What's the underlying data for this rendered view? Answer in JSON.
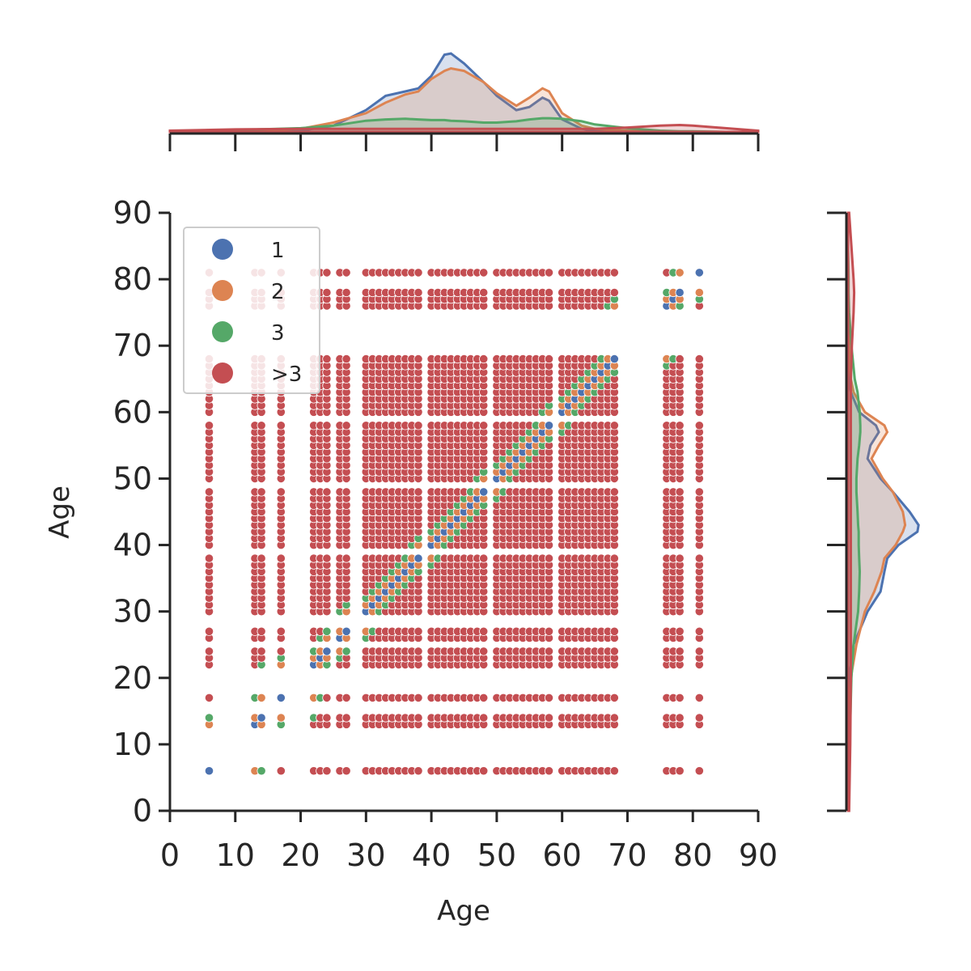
{
  "chart_data": {
    "type": "scatter",
    "title": "",
    "xlabel": "Age",
    "ylabel": "Age",
    "xlim": [
      0,
      90
    ],
    "ylim": [
      0,
      90
    ],
    "xticks": [
      "0",
      "10",
      "20",
      "30",
      "40",
      "50",
      "60",
      "70",
      "80",
      "90"
    ],
    "yticks": [
      "0",
      "10",
      "20",
      "30",
      "40",
      "50",
      "60",
      "70",
      "80",
      "90"
    ],
    "grid": false,
    "legend_position": "top-left",
    "ages": [
      6,
      13,
      14,
      17,
      22,
      23,
      24,
      26,
      27,
      30,
      31,
      32,
      33,
      34,
      35,
      36,
      37,
      38,
      40,
      41,
      42,
      43,
      44,
      45,
      46,
      47,
      48,
      50,
      51,
      52,
      53,
      54,
      55,
      56,
      57,
      58,
      60,
      61,
      62,
      63,
      64,
      65,
      66,
      67,
      68,
      76,
      77,
      78,
      81
    ],
    "scatter_note_category_by_age_difference": true,
    "series": [
      {
        "name": "1",
        "color": "#4c72b0"
      },
      {
        "name": "2",
        "color": "#dd8452"
      },
      {
        "name": "3",
        "color": "#55a868"
      },
      {
        "name": ">3",
        "color": "#c44e52"
      }
    ],
    "marginal_kde_top": {
      "x": [
        0,
        10,
        20,
        25,
        30,
        33,
        36,
        38,
        40,
        42,
        43,
        45,
        48,
        50,
        53,
        55,
        57,
        58,
        60,
        63,
        65,
        70,
        75,
        78,
        80,
        85,
        90
      ],
      "series": [
        {
          "name": "1",
          "density": [
            0,
            0,
            0.002,
            0.01,
            0.035,
            0.058,
            0.065,
            0.07,
            0.09,
            0.124,
            0.126,
            0.11,
            0.08,
            0.058,
            0.035,
            0.04,
            0.055,
            0.05,
            0.02,
            0.005,
            0.002,
            0,
            0,
            0,
            0,
            0,
            0
          ]
        },
        {
          "name": "2",
          "density": [
            0,
            0.001,
            0.005,
            0.015,
            0.03,
            0.047,
            0.06,
            0.065,
            0.085,
            0.098,
            0.102,
            0.098,
            0.08,
            0.062,
            0.042,
            0.055,
            0.07,
            0.065,
            0.03,
            0.01,
            0.005,
            0.002,
            0.001,
            0,
            0,
            0,
            0
          ]
        },
        {
          "name": "3",
          "density": [
            0,
            0.003,
            0.006,
            0.01,
            0.018,
            0.02,
            0.021,
            0.02,
            0.019,
            0.019,
            0.018,
            0.017,
            0.015,
            0.015,
            0.017,
            0.02,
            0.022,
            0.022,
            0.021,
            0.017,
            0.012,
            0.006,
            0.002,
            0.001,
            0.001,
            0,
            0
          ]
        },
        {
          "name": ">3",
          "density": [
            0.002,
            0.004,
            0.005,
            0.005,
            0.005,
            0.005,
            0.005,
            0.005,
            0.005,
            0.005,
            0.005,
            0.005,
            0.005,
            0.005,
            0.005,
            0.005,
            0.005,
            0.005,
            0.005,
            0.005,
            0.005,
            0.007,
            0.01,
            0.011,
            0.01,
            0.006,
            0.002
          ]
        }
      ]
    },
    "marginal_kde_right": {
      "y": [
        0,
        10,
        20,
        25,
        30,
        33,
        36,
        38,
        40,
        42,
        43,
        45,
        48,
        50,
        53,
        55,
        57,
        58,
        60,
        63,
        65,
        70,
        75,
        78,
        80,
        85,
        90
      ],
      "series": [
        {
          "name": "1",
          "density": [
            0,
            0,
            0.002,
            0.01,
            0.035,
            0.058,
            0.065,
            0.07,
            0.09,
            0.124,
            0.126,
            0.11,
            0.08,
            0.058,
            0.035,
            0.04,
            0.055,
            0.05,
            0.02,
            0.005,
            0.002,
            0,
            0,
            0,
            0,
            0,
            0
          ]
        },
        {
          "name": "2",
          "density": [
            0,
            0.001,
            0.005,
            0.015,
            0.03,
            0.047,
            0.06,
            0.065,
            0.085,
            0.098,
            0.102,
            0.098,
            0.08,
            0.062,
            0.042,
            0.055,
            0.07,
            0.065,
            0.03,
            0.01,
            0.005,
            0.002,
            0.001,
            0,
            0,
            0,
            0
          ]
        },
        {
          "name": "3",
          "density": [
            0,
            0.003,
            0.006,
            0.01,
            0.018,
            0.02,
            0.021,
            0.02,
            0.019,
            0.019,
            0.018,
            0.017,
            0.015,
            0.015,
            0.017,
            0.02,
            0.022,
            0.022,
            0.021,
            0.017,
            0.012,
            0.006,
            0.002,
            0.001,
            0.001,
            0,
            0
          ]
        },
        {
          "name": ">3",
          "density": [
            0.002,
            0.004,
            0.005,
            0.005,
            0.005,
            0.005,
            0.005,
            0.005,
            0.005,
            0.005,
            0.005,
            0.005,
            0.005,
            0.005,
            0.005,
            0.005,
            0.005,
            0.005,
            0.005,
            0.005,
            0.005,
            0.007,
            0.01,
            0.011,
            0.01,
            0.006,
            0.002
          ]
        }
      ]
    }
  },
  "legend": {
    "items": [
      {
        "label": "1",
        "color": "#4c72b0"
      },
      {
        "label": "2",
        "color": "#dd8452"
      },
      {
        "label": "3",
        "color": "#55a868"
      },
      {
        "label": ">3",
        "color": "#c44e52"
      }
    ]
  }
}
